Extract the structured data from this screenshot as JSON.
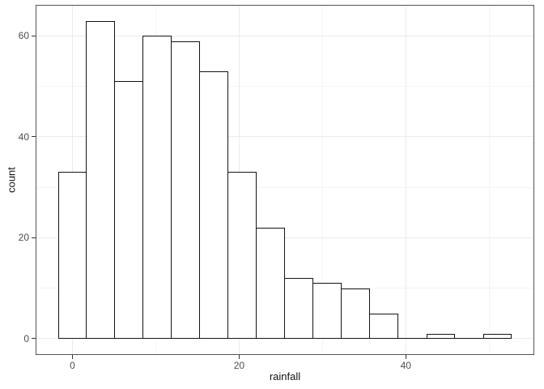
{
  "chart_data": {
    "type": "bar",
    "subtype": "histogram",
    "title": "",
    "xlabel": "rainfall",
    "ylabel": "count",
    "binwidth": 3.4,
    "bin_centers": [
      0,
      3.4,
      6.8,
      10.2,
      13.6,
      17,
      20.4,
      23.8,
      27.2,
      30.6,
      34,
      37.4,
      40.8,
      44.2,
      47.6,
      51
    ],
    "counts": [
      33,
      63,
      51,
      60,
      59,
      53,
      33,
      22,
      12,
      11,
      10,
      5,
      0,
      1,
      0,
      1
    ],
    "x_ticks_major": [
      0,
      20,
      40
    ],
    "x_ticks_minor": [
      10,
      30,
      50
    ],
    "y_ticks_major": [
      0,
      20,
      40,
      60
    ],
    "y_ticks_minor": [
      10,
      30,
      50
    ],
    "xlim": [
      -4.42,
      55.42
    ],
    "ylim": [
      -3.25,
      66.15
    ],
    "grid": true,
    "legend": false,
    "colors": {
      "background": "#FFFFFF",
      "panel_background": "#FFFFFF",
      "panel_border": "#555555",
      "grid_major": "#EBEBEB",
      "grid_minor": "#F4F4F4",
      "bar_fill": "#FFFFFF",
      "bar_stroke": "#141414",
      "tick_mark": "#333333",
      "tick_label": "#4D4D4D",
      "axis_title": "#111111"
    }
  }
}
